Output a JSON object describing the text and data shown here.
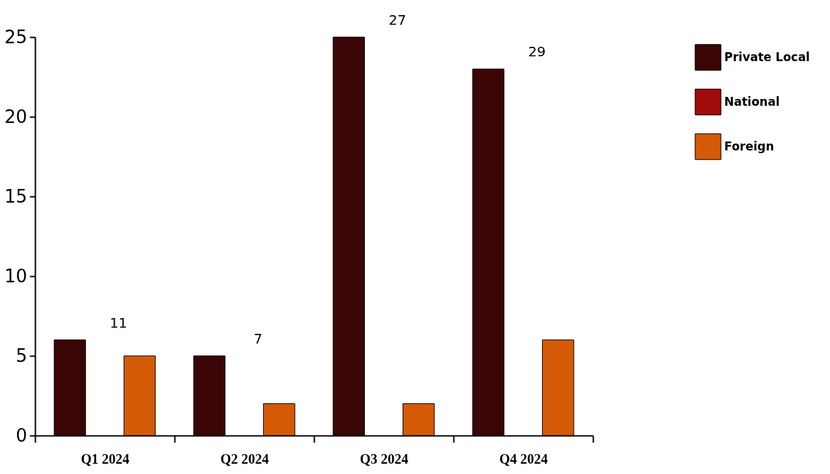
{
  "chart_data": {
    "type": "bar",
    "categories": [
      "Q1 2024",
      "Q2 2024",
      "Q3 2024",
      "Q4 2024"
    ],
    "series": [
      {
        "name": "Private Local",
        "color": "#3a0505",
        "values": [
          6,
          5,
          25,
          23
        ]
      },
      {
        "name": "National",
        "color": "#a00a0a",
        "values": [
          0,
          0,
          0,
          0
        ]
      },
      {
        "name": "Foreign",
        "color": "#d55a08",
        "values": [
          5,
          2,
          2,
          6
        ]
      }
    ],
    "ylim": [
      0,
      25
    ],
    "yticks": [
      0,
      5,
      10,
      15,
      20,
      25
    ],
    "grid": false,
    "legend": "top right",
    "totals": [
      "11",
      "7",
      "27",
      "29"
    ]
  }
}
